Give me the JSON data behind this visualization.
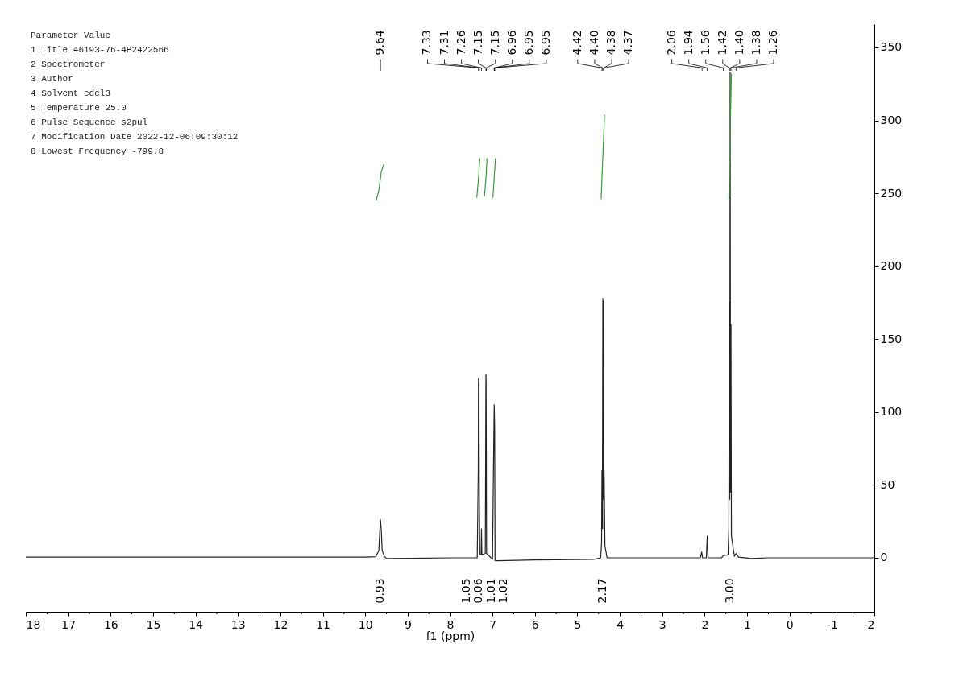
{
  "chart_data": {
    "type": "line",
    "xlabel": "f1 (ppm)",
    "xlim": [
      18,
      -2
    ],
    "ylim": [
      -37,
      366
    ],
    "xticks": [
      18,
      {
        "value": 17.5,
        "label": null
      },
      17,
      {
        "value": 16.5,
        "label": null
      },
      16,
      {
        "value": 15.5,
        "label": null
      },
      15,
      {
        "value": 14.5,
        "label": null
      },
      14,
      {
        "value": 13.5,
        "label": null
      },
      13,
      {
        "value": 12.5,
        "label": null
      },
      12,
      {
        "value": 11.5,
        "label": null
      },
      11,
      {
        "value": 10.5,
        "label": null
      },
      10,
      {
        "value": 9.5,
        "label": null
      },
      9,
      {
        "value": 8.5,
        "label": null
      },
      8,
      {
        "value": 7.5,
        "label": null
      },
      7,
      {
        "value": 6.5,
        "label": null
      },
      6,
      {
        "value": 5.5,
        "label": null
      },
      5,
      {
        "value": 4.5,
        "label": null
      },
      4,
      {
        "value": 3.5,
        "label": null
      },
      3,
      {
        "value": 2.5,
        "label": null
      },
      2,
      {
        "value": 1.5,
        "label": null
      },
      1,
      {
        "value": 0.5,
        "label": null
      },
      0,
      {
        "value": -0.5,
        "label": null
      },
      -1,
      {
        "value": -1.5,
        "label": null
      },
      -2
    ],
    "yticks": [
      0,
      50,
      100,
      150,
      200,
      250,
      300,
      350
    ],
    "grid": false,
    "legend": false,
    "series": [
      {
        "color": "#222222",
        "x": [
          18,
          14,
          10,
          9.75,
          9.68,
          9.65,
          9.64,
          9.62,
          9.6,
          9.55,
          9.5,
          8,
          7.36,
          7.335,
          7.33,
          7.32,
          7.31,
          7.3,
          7.27,
          7.26,
          7.25,
          7.17,
          7.155,
          7.15,
          7.14,
          7.0,
          6.97,
          6.96,
          6.95,
          6.94,
          6.9,
          6.0,
          4.6,
          4.45,
          4.43,
          4.42,
          4.41,
          4.4,
          4.39,
          4.38,
          4.375,
          4.37,
          4.35,
          4.3,
          3.0,
          2.1,
          2.07,
          2.05,
          1.96,
          1.94,
          1.92,
          1.6,
          1.56,
          1.45,
          1.43,
          1.42,
          1.41,
          1.4,
          1.39,
          1.38,
          1.37,
          1.3,
          1.26,
          1.2,
          0.9,
          0.5,
          -2
        ],
        "values": [
          0.5,
          0.5,
          0.5,
          0.8,
          5,
          22,
          26,
          18,
          5,
          1,
          -0.5,
          0,
          0,
          60,
          123,
          118,
          40,
          2,
          2,
          20,
          2,
          3,
          126,
          120,
          3,
          -1,
          80,
          105,
          90,
          -2,
          -2,
          -1.5,
          -1,
          0,
          10,
          60,
          20,
          178,
          40,
          176,
          20,
          60,
          8,
          0,
          0,
          0,
          4,
          0,
          0,
          15,
          0,
          0,
          1.5,
          2,
          20,
          175,
          40,
          333,
          45,
          160,
          15,
          1,
          3,
          0.5,
          -0.5,
          0,
          0
        ]
      },
      {
        "color": "#3a9a3a",
        "x": [
          9.74,
          9.68,
          9.62,
          9.56
        ],
        "values": [
          245,
          252,
          265,
          270
        ]
      },
      {
        "color": "#3a9a3a",
        "x": [
          7.37,
          7.33,
          7.3
        ],
        "values": [
          247,
          260,
          274
        ]
      },
      {
        "color": "#3a9a3a",
        "x": [
          7.19,
          7.15,
          7.13
        ],
        "values": [
          248,
          262,
          274
        ]
      },
      {
        "color": "#3a9a3a",
        "x": [
          6.99,
          6.96,
          6.93
        ],
        "values": [
          247,
          261,
          274
        ]
      },
      {
        "color": "#3a9a3a",
        "x": [
          4.44,
          4.4,
          4.36
        ],
        "values": [
          246,
          275,
          304
        ]
      },
      {
        "color": "#3a9a3a",
        "x": [
          1.43,
          1.4,
          1.37
        ],
        "values": [
          246,
          290,
          332
        ]
      }
    ],
    "annotations": [
      {
        "text": "9.64",
        "x": 9.64
      },
      {
        "text": "7.33",
        "x": 7.33
      },
      {
        "text": "7.31",
        "x": 7.31
      },
      {
        "text": "7.26",
        "x": 7.26
      },
      {
        "text": "7.15",
        "x": 7.15
      },
      {
        "text": "7.15",
        "x": 7.15
      },
      {
        "text": "6.96",
        "x": 6.96
      },
      {
        "text": "6.95",
        "x": 6.95
      },
      {
        "text": "6.95",
        "x": 6.95
      },
      {
        "text": "4.42",
        "x": 4.42
      },
      {
        "text": "4.40",
        "x": 4.4
      },
      {
        "text": "4.38",
        "x": 4.38
      },
      {
        "text": "4.37",
        "x": 4.37
      },
      {
        "text": "2.06",
        "x": 2.06
      },
      {
        "text": "1.94",
        "x": 1.94
      },
      {
        "text": "1.56",
        "x": 1.56
      },
      {
        "text": "1.42",
        "x": 1.42
      },
      {
        "text": "1.40",
        "x": 1.4
      },
      {
        "text": "1.38",
        "x": 1.38
      },
      {
        "text": "1.26",
        "x": 1.26
      },
      {
        "text": "0.93",
        "x": 9.64,
        "y": 0
      },
      {
        "text": "1.05",
        "x": 7.33,
        "y": 0
      },
      {
        "text": "0.06",
        "x": 7.26,
        "y": 0
      },
      {
        "text": "1.01",
        "x": 7.15,
        "y": 0
      },
      {
        "text": "1.02",
        "x": 6.96,
        "y": 0
      },
      {
        "text": "2.17",
        "x": 4.4,
        "y": 0
      },
      {
        "text": "3.00",
        "x": 1.4,
        "y": 0
      },
      "Parameter            Value",
      "1 Title              46193-76-4P2422566",
      "2 Spectrometer",
      "3 Author",
      "4 Solvent            cdcl3",
      "5 Temperature        25.0",
      "6 Pulse Sequence     s2pul",
      "7 Modification Date  2022-12-06T09:30:12",
      "8 Lowest Frequency   -799.8"
    ]
  }
}
